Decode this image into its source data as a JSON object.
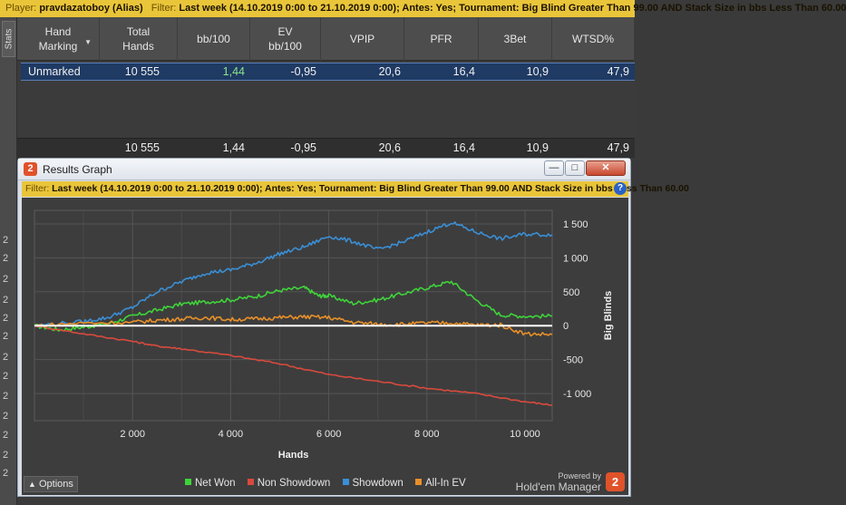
{
  "top_filter": {
    "player_key": "Player:",
    "player_value": "pravdazatoboy (Alias)",
    "filter_key": "Filter:",
    "filter_value": "Last week (14.10.2019 0:00 to 21.10.2019 0:00); Antes: Yes; Tournament: Big Blind Greater Than 99.00 AND Stack Size in bbs Less Than 60.00"
  },
  "sidebar": {
    "stats_tab": "Stats",
    "row_numbers": [
      "2",
      "2",
      "2",
      "2",
      "2",
      "2",
      "2",
      "2",
      "2",
      "2",
      "2",
      "2",
      "2"
    ]
  },
  "stats_table": {
    "columns": [
      {
        "label": "Hand\nMarking"
      },
      {
        "label": "Total\nHands"
      },
      {
        "label": "bb/100"
      },
      {
        "label": "EV\nbb/100"
      },
      {
        "label": "VPIP"
      },
      {
        "label": "PFR"
      },
      {
        "label": "3Bet"
      },
      {
        "label": "WTSD%"
      }
    ],
    "row": {
      "marking": "Unmarked",
      "total_hands": "10 555",
      "bb100": "1,44",
      "ev_bb100": "-0,95",
      "vpip": "20,6",
      "pfr": "16,4",
      "threebet": "10,9",
      "wtsd": "47,9"
    },
    "totals": {
      "total_hands": "10 555",
      "bb100": "1,44",
      "ev_bb100": "-0,95",
      "vpip": "20,6",
      "pfr": "16,4",
      "threebet": "10,9",
      "wtsd": "47,9"
    }
  },
  "window": {
    "title": "Results Graph",
    "icon_name": "hm2-logo-icon",
    "buttons": [
      "minimize",
      "maximize",
      "close"
    ],
    "filter_key": "Filter:",
    "filter_value": "Last week (14.10.2019 0:00 to 21.10.2019 0:00); Antes: Yes; Tournament: Big Blind Greater Than 99.00 AND Stack Size in bbs Less Than 60.00"
  },
  "options_label": "Options",
  "options_icon": "caret-up-icon",
  "powered": {
    "line1": "Powered by",
    "line2": "Hold'em Manager"
  },
  "colors": {
    "net_won": "#3fd33a",
    "non_showdown": "#d94a3d",
    "showdown": "#3a8fd6",
    "allin_ev": "#e8902a",
    "zero_line": "#ffffff",
    "filter_bar": "#e9c53a",
    "selected_row": "#1f3a63"
  },
  "chart_data": {
    "type": "line",
    "xlabel": "Hands",
    "ylabel": "Big Blinds",
    "xlim": [
      0,
      10555
    ],
    "ylim": [
      -1400,
      1700
    ],
    "xticks": [
      2000,
      4000,
      6000,
      8000,
      10000
    ],
    "xtick_labels": [
      "2 000",
      "4 000",
      "6 000",
      "8 000",
      "10 000"
    ],
    "yticks": [
      1500,
      1000,
      500,
      0,
      -500,
      -1000
    ],
    "ytick_labels": [
      "1 500",
      "1 000",
      "500",
      "0",
      "-500",
      "-1 000"
    ],
    "grid": true,
    "legend_position": "bottom",
    "series": [
      {
        "name": "Net Won",
        "color": "#3fd33a",
        "x": [
          0,
          500,
          1000,
          1500,
          2000,
          2500,
          3000,
          3500,
          4000,
          4500,
          5000,
          5500,
          5800,
          6000,
          6500,
          7000,
          7500,
          8000,
          8500,
          9000,
          9500,
          10000,
          10555
        ],
        "y": [
          0,
          -60,
          -20,
          30,
          140,
          230,
          320,
          350,
          380,
          430,
          520,
          560,
          440,
          440,
          330,
          380,
          470,
          560,
          650,
          380,
          160,
          140,
          140
        ]
      },
      {
        "name": "Non Showdown",
        "color": "#d94a3d",
        "x": [
          0,
          1000,
          2000,
          2500,
          3000,
          4000,
          5000,
          6000,
          7000,
          8000,
          9000,
          10000,
          10555
        ],
        "y": [
          0,
          -120,
          -230,
          -300,
          -340,
          -440,
          -560,
          -720,
          -820,
          -920,
          -1000,
          -1120,
          -1170
        ]
      },
      {
        "name": "Showdown",
        "color": "#3a8fd6",
        "x": [
          0,
          1000,
          1500,
          2000,
          2500,
          3000,
          3500,
          4000,
          4500,
          5000,
          5500,
          6000,
          6500,
          7000,
          7500,
          8000,
          8500,
          9000,
          9500,
          10000,
          10555
        ],
        "y": [
          0,
          60,
          120,
          270,
          500,
          650,
          780,
          820,
          920,
          1060,
          1160,
          1320,
          1240,
          1120,
          1230,
          1380,
          1520,
          1380,
          1280,
          1350,
          1340
        ]
      },
      {
        "name": "All-In EV",
        "color": "#e8902a",
        "x": [
          0,
          1000,
          2000,
          2500,
          3000,
          3500,
          4000,
          4500,
          5000,
          5500,
          6000,
          6500,
          7000,
          7500,
          8000,
          8500,
          9000,
          9500,
          10000,
          10555
        ],
        "y": [
          0,
          40,
          50,
          80,
          100,
          120,
          90,
          100,
          120,
          130,
          120,
          50,
          20,
          20,
          40,
          40,
          10,
          10,
          -120,
          -130
        ]
      }
    ]
  }
}
